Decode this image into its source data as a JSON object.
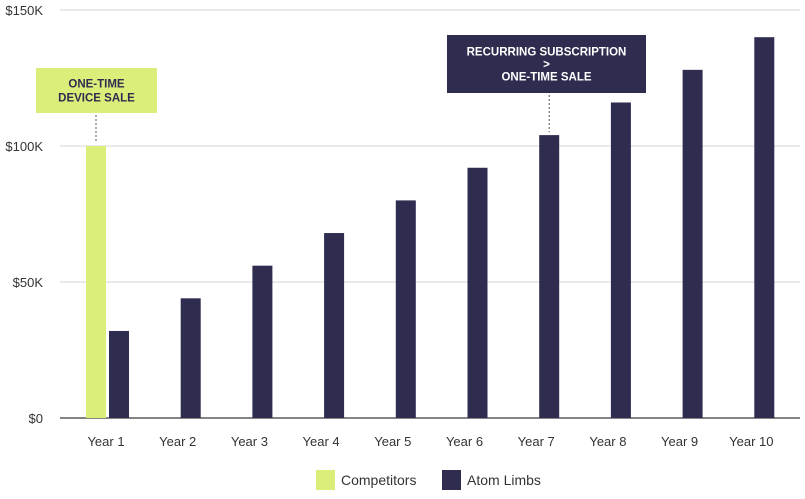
{
  "chart_data": {
    "type": "bar",
    "title": "",
    "xlabel": "",
    "ylabel": "",
    "categories": [
      "Year 1",
      "Year 2",
      "Year 3",
      "Year 4",
      "Year 5",
      "Year 6",
      "Year 7",
      "Year 8",
      "Year 9",
      "Year 10"
    ],
    "ylim": [
      0,
      150000
    ],
    "yticks": [
      0,
      50000,
      100000,
      150000
    ],
    "ytick_labels": [
      "$0",
      "$50K",
      "$100K",
      "$150K"
    ],
    "grid": true,
    "legend_position": "bottom-center",
    "series": [
      {
        "name": "Competitors",
        "color": "#dcee7a",
        "values": [
          100000,
          null,
          null,
          null,
          null,
          null,
          null,
          null,
          null,
          null
        ]
      },
      {
        "name": "Atom Limbs",
        "color": "#2e2c4f",
        "values": [
          32000,
          44000,
          56000,
          68000,
          80000,
          92000,
          104000,
          116000,
          128000,
          140000
        ]
      }
    ],
    "annotations": [
      {
        "lines": [
          "ONE-TIME",
          "DEVICE SALE"
        ],
        "target_category": "Year 1",
        "target_series": "Competitors",
        "background": "#dcee7a",
        "text_color": "#2e2c4f"
      },
      {
        "lines": [
          "RECURRING SUBSCRIPTION",
          ">",
          "ONE-TIME SALE"
        ],
        "target_category": "Year 7",
        "target_series": "Atom Limbs",
        "background": "#2e2c4f",
        "text_color": "#ffffff"
      }
    ]
  }
}
